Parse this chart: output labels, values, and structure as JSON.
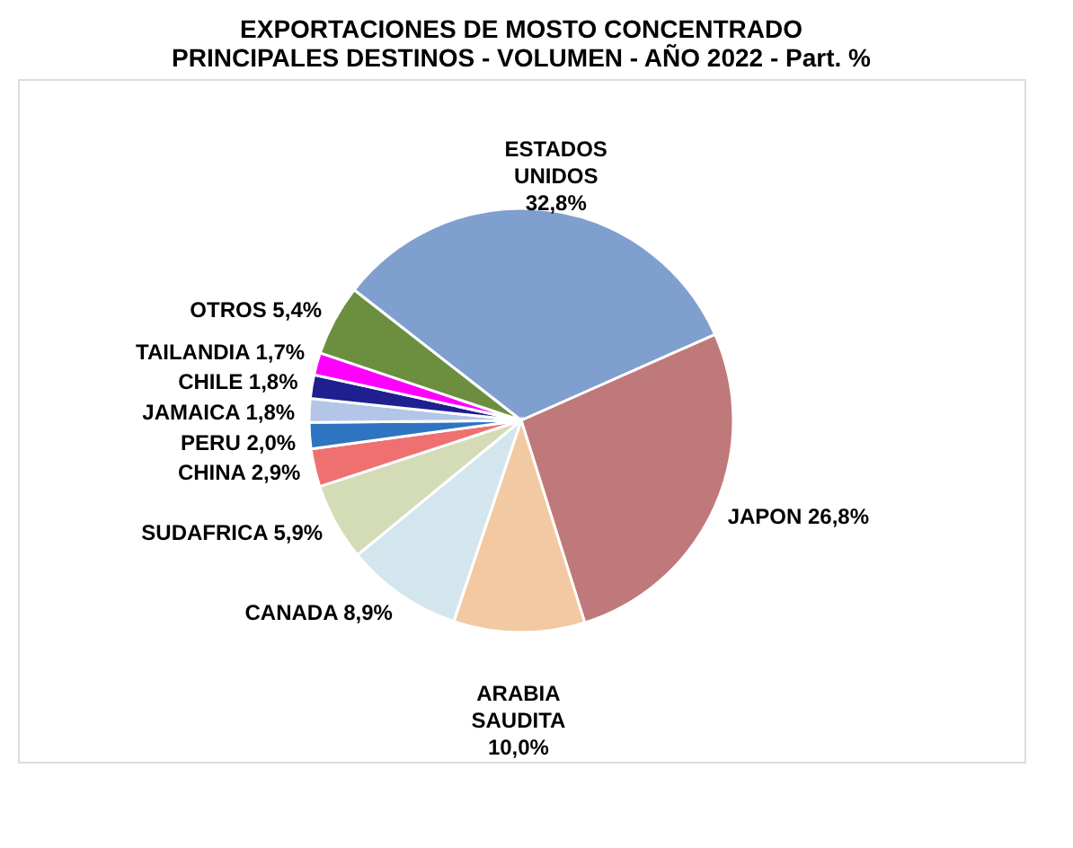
{
  "chart_data": {
    "type": "pie",
    "title": "EXPORTACIONES DE MOSTO CONCENTRADO\nPRINCIPALES DESTINOS - VOLUMEN - AÑO 2022 - Part. %",
    "categories": [
      "ESTADOS UNIDOS",
      "JAPON",
      "ARABIA SAUDITA",
      "CANADA",
      "SUDAFRICA",
      "CHINA",
      "PERU",
      "JAMAICA",
      "CHILE",
      "TAILANDIA",
      "OTROS"
    ],
    "values": [
      32.8,
      26.8,
      10.0,
      8.9,
      5.9,
      2.9,
      2.0,
      1.8,
      1.8,
      1.7,
      5.4
    ],
    "value_labels": [
      "32,8%",
      "26,8%",
      "10,0%",
      "8,9%",
      "5,9%",
      "2,9%",
      "2,0%",
      "1,8%",
      "1,8%",
      "1,7%",
      "5,4%"
    ],
    "colors": [
      "#7f9fcf",
      "#c0797a",
      "#f2c9a2",
      "#d3e6ee",
      "#d3dcb6",
      "#ef7070",
      "#2e74c0",
      "#b4c6e7",
      "#1f1f8f",
      "#ff00ff",
      "#6b8e3f"
    ],
    "legend": false
  }
}
